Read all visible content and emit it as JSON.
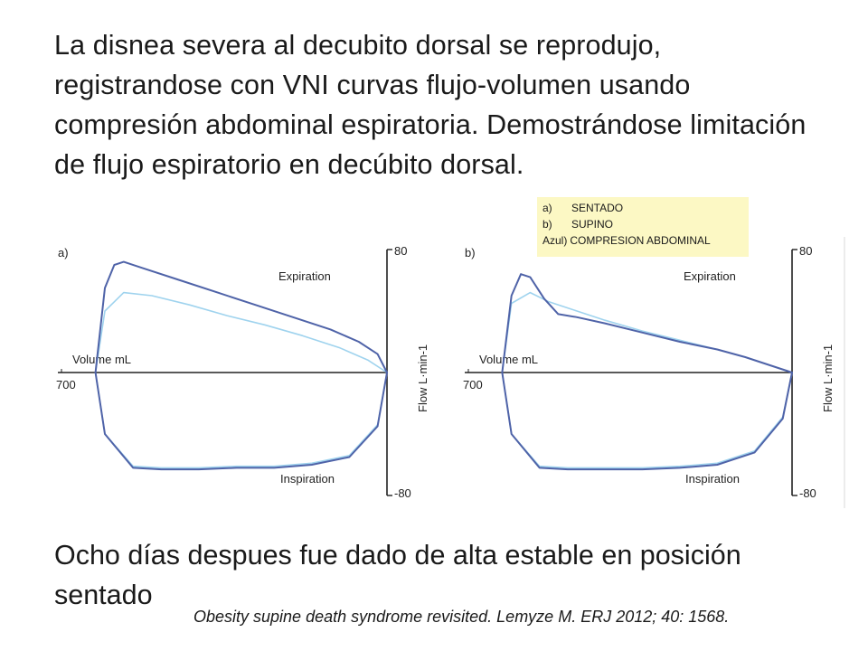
{
  "title": "La disnea severa al decubito dorsal se reprodujo, registrandose con VNI curvas flujo-volumen usando compresión abdominal espiratoria. Demostrándose limitación de flujo espiratorio en decúbito dorsal.",
  "footer": "Ocho días despues fue dado de alta estable en posición sentado",
  "citation": "Obesity supine death syndrome revisited. Lemyze M. ERJ 2012; 40: 1568.",
  "legend": {
    "items": [
      {
        "key": "a)",
        "label": "SENTADO"
      },
      {
        "key": "b)",
        "label": "SUPINO"
      },
      {
        "key": "Azul)",
        "label": "COMPRESION ABDOMINAL"
      }
    ]
  },
  "colors": {
    "curve_dark": "#4f63a8",
    "curve_light": "#9fd3ee",
    "axis": "#222222",
    "legend_bg": "#fcf8c4"
  },
  "chart_data": [
    {
      "type": "line",
      "panel_label": "a)",
      "xlabel": "Volume mL",
      "ylabel": "Flow L·min-1",
      "x_tick_label": "700",
      "y_tick_labels": [
        "80",
        "-80"
      ],
      "annotations": [
        "Expiration",
        "Inspiration"
      ],
      "xlim": [
        700,
        0
      ],
      "ylim": [
        -80,
        80
      ],
      "series": [
        {
          "role": "seated",
          "color": "#4f63a8",
          "expiration": {
            "x": [
              620,
              600,
              580,
              560,
              520,
              440,
              360,
              280,
              200,
              120,
              60,
              20,
              0
            ],
            "y": [
              0,
              55,
              70,
              72,
              68,
              60,
              52,
              44,
              36,
              28,
              20,
              12,
              0
            ]
          },
          "inspiration": {
            "x": [
              0,
              20,
              80,
              160,
              240,
              320,
              400,
              480,
              540,
              600,
              620
            ],
            "y": [
              0,
              -35,
              -55,
              -60,
              -62,
              -62,
              -63,
              -63,
              -62,
              -40,
              0
            ]
          }
        },
        {
          "role": "abdominal compression",
          "color": "#9fd3ee",
          "expiration": {
            "x": [
              620,
              600,
              560,
              500,
              420,
              340,
              260,
              180,
              100,
              40,
              0
            ],
            "y": [
              0,
              40,
              52,
              50,
              44,
              37,
              31,
              24,
              16,
              8,
              0
            ]
          },
          "inspiration": {
            "x": [
              0,
              20,
              80,
              160,
              240,
              320,
              400,
              480,
              540,
              600,
              620
            ],
            "y": [
              0,
              -34,
              -54,
              -59,
              -61,
              -61,
              -62,
              -62,
              -61,
              -40,
              0
            ]
          }
        }
      ]
    },
    {
      "type": "line",
      "panel_label": "b)",
      "xlabel": "Volume mL",
      "ylabel": "Flow L·min-1",
      "x_tick_label": "700",
      "y_tick_labels": [
        "80",
        "-80"
      ],
      "annotations": [
        "Expiration",
        "Inspiration"
      ],
      "xlim": [
        700,
        0
      ],
      "ylim": [
        -80,
        80
      ],
      "series": [
        {
          "role": "supine",
          "color": "#4f63a8",
          "expiration": {
            "x": [
              620,
              600,
              580,
              560,
              530,
              500,
              460,
              400,
              320,
              240,
              160,
              100,
              50,
              0
            ],
            "y": [
              0,
              50,
              64,
              62,
              48,
              38,
              36,
              32,
              26,
              20,
              15,
              10,
              5,
              0
            ]
          },
          "inspiration": {
            "x": [
              0,
              20,
              80,
              160,
              240,
              320,
              400,
              480,
              540,
              600,
              620
            ],
            "y": [
              0,
              -30,
              -52,
              -60,
              -62,
              -63,
              -63,
              -63,
              -62,
              -40,
              0
            ]
          }
        },
        {
          "role": "abdominal compression",
          "color": "#9fd3ee",
          "expiration": {
            "x": [
              620,
              600,
              560,
              520,
              460,
              400,
              320,
              240,
              160,
              100,
              50,
              0
            ],
            "y": [
              0,
              45,
              52,
              46,
              40,
              34,
              27,
              21,
              15,
              10,
              5,
              0
            ]
          },
          "inspiration": {
            "x": [
              0,
              20,
              80,
              160,
              240,
              320,
              400,
              480,
              540,
              600,
              620
            ],
            "y": [
              0,
              -29,
              -51,
              -59,
              -61,
              -62,
              -62,
              -62,
              -61,
              -40,
              0
            ]
          }
        }
      ]
    }
  ]
}
